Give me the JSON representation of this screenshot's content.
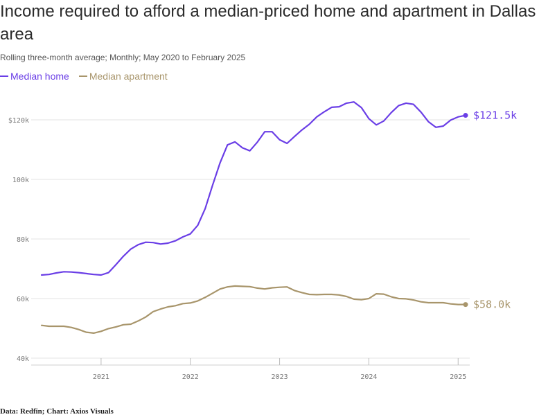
{
  "title": "Income required to afford a median-priced home and apartment in Dallas area",
  "subtitle": "Rolling three-month average; Monthly; May 2020 to February 2025",
  "source": "Data: Redfin; Chart: Axios Visuals",
  "colors": {
    "home": "#6a3ee6",
    "apartment": "#a8956b",
    "grid": "#e3e3e3"
  },
  "chart_data": {
    "type": "line",
    "x_start": "2020-05",
    "x_end": "2025-02",
    "x_ticks": [
      {
        "label": "2021",
        "date": "2021-01"
      },
      {
        "label": "2022",
        "date": "2022-01"
      },
      {
        "label": "2023",
        "date": "2023-01"
      },
      {
        "label": "2024",
        "date": "2024-01"
      },
      {
        "label": "2025",
        "date": "2025-01"
      }
    ],
    "y_ticks": [
      {
        "label": "40k",
        "value": 40000
      },
      {
        "label": "60k",
        "value": 60000
      },
      {
        "label": "80k",
        "value": 80000
      },
      {
        "label": "100k",
        "value": 100000
      },
      {
        "label": "$120k",
        "value": 120000
      }
    ],
    "ylim": [
      40000,
      130000
    ],
    "grid": "horizontal",
    "legend": "top-left",
    "series": [
      {
        "name": "Median home",
        "end_label": "$121.5k",
        "values": [
          [
            "2020-05",
            67900
          ],
          [
            "2020-06",
            68100
          ],
          [
            "2020-07",
            68600
          ],
          [
            "2020-08",
            69000
          ],
          [
            "2020-09",
            68900
          ],
          [
            "2020-10",
            68700
          ],
          [
            "2020-11",
            68400
          ],
          [
            "2020-12",
            68100
          ],
          [
            "2021-01",
            67900
          ],
          [
            "2021-02",
            68700
          ],
          [
            "2021-03",
            71400
          ],
          [
            "2021-04",
            74200
          ],
          [
            "2021-05",
            76600
          ],
          [
            "2021-06",
            78100
          ],
          [
            "2021-07",
            78900
          ],
          [
            "2021-08",
            78800
          ],
          [
            "2021-09",
            78300
          ],
          [
            "2021-10",
            78600
          ],
          [
            "2021-11",
            79400
          ],
          [
            "2021-12",
            80700
          ],
          [
            "2022-01",
            81700
          ],
          [
            "2022-02",
            84600
          ],
          [
            "2022-03",
            90200
          ],
          [
            "2022-04",
            98100
          ],
          [
            "2022-05",
            105600
          ],
          [
            "2022-06",
            111600
          ],
          [
            "2022-07",
            112600
          ],
          [
            "2022-08",
            110600
          ],
          [
            "2022-09",
            109600
          ],
          [
            "2022-10",
            112500
          ],
          [
            "2022-11",
            116000
          ],
          [
            "2022-12",
            116000
          ],
          [
            "2023-01",
            113300
          ],
          [
            "2023-02",
            112100
          ],
          [
            "2023-03",
            114400
          ],
          [
            "2023-04",
            116600
          ],
          [
            "2023-05",
            118500
          ],
          [
            "2023-06",
            121000
          ],
          [
            "2023-07",
            122700
          ],
          [
            "2023-08",
            124200
          ],
          [
            "2023-09",
            124400
          ],
          [
            "2023-10",
            125600
          ],
          [
            "2023-11",
            126000
          ],
          [
            "2023-12",
            124100
          ],
          [
            "2024-01",
            120400
          ],
          [
            "2024-02",
            118300
          ],
          [
            "2024-03",
            119600
          ],
          [
            "2024-04",
            122400
          ],
          [
            "2024-05",
            124800
          ],
          [
            "2024-06",
            125600
          ],
          [
            "2024-07",
            125200
          ],
          [
            "2024-08",
            122600
          ],
          [
            "2024-09",
            119400
          ],
          [
            "2024-10",
            117500
          ],
          [
            "2024-11",
            117900
          ],
          [
            "2024-12",
            119900
          ],
          [
            "2025-01",
            121000
          ],
          [
            "2025-02",
            121500
          ]
        ]
      },
      {
        "name": "Median apartment",
        "end_label": "$58.0k",
        "values": [
          [
            "2020-05",
            51000
          ],
          [
            "2020-06",
            50700
          ],
          [
            "2020-07",
            50700
          ],
          [
            "2020-08",
            50700
          ],
          [
            "2020-09",
            50300
          ],
          [
            "2020-10",
            49600
          ],
          [
            "2020-11",
            48700
          ],
          [
            "2020-12",
            48400
          ],
          [
            "2021-01",
            49000
          ],
          [
            "2021-02",
            49900
          ],
          [
            "2021-03",
            50500
          ],
          [
            "2021-04",
            51200
          ],
          [
            "2021-05",
            51400
          ],
          [
            "2021-06",
            52500
          ],
          [
            "2021-07",
            53800
          ],
          [
            "2021-08",
            55600
          ],
          [
            "2021-09",
            56500
          ],
          [
            "2021-10",
            57200
          ],
          [
            "2021-11",
            57600
          ],
          [
            "2021-12",
            58300
          ],
          [
            "2022-01",
            58500
          ],
          [
            "2022-02",
            59200
          ],
          [
            "2022-03",
            60400
          ],
          [
            "2022-04",
            61800
          ],
          [
            "2022-05",
            63200
          ],
          [
            "2022-06",
            63900
          ],
          [
            "2022-07",
            64200
          ],
          [
            "2022-08",
            64100
          ],
          [
            "2022-09",
            64000
          ],
          [
            "2022-10",
            63500
          ],
          [
            "2022-11",
            63200
          ],
          [
            "2022-12",
            63600
          ],
          [
            "2023-01",
            63800
          ],
          [
            "2023-02",
            63900
          ],
          [
            "2023-03",
            62700
          ],
          [
            "2023-04",
            62000
          ],
          [
            "2023-05",
            61400
          ],
          [
            "2023-06",
            61300
          ],
          [
            "2023-07",
            61400
          ],
          [
            "2023-08",
            61400
          ],
          [
            "2023-09",
            61200
          ],
          [
            "2023-10",
            60700
          ],
          [
            "2023-11",
            59800
          ],
          [
            "2023-12",
            59600
          ],
          [
            "2024-01",
            60000
          ],
          [
            "2024-02",
            61600
          ],
          [
            "2024-03",
            61500
          ],
          [
            "2024-04",
            60600
          ],
          [
            "2024-05",
            60000
          ],
          [
            "2024-06",
            59900
          ],
          [
            "2024-07",
            59500
          ],
          [
            "2024-08",
            58900
          ],
          [
            "2024-09",
            58600
          ],
          [
            "2024-10",
            58600
          ],
          [
            "2024-11",
            58600
          ],
          [
            "2024-12",
            58200
          ],
          [
            "2025-01",
            58000
          ],
          [
            "2025-02",
            58000
          ]
        ]
      }
    ]
  }
}
